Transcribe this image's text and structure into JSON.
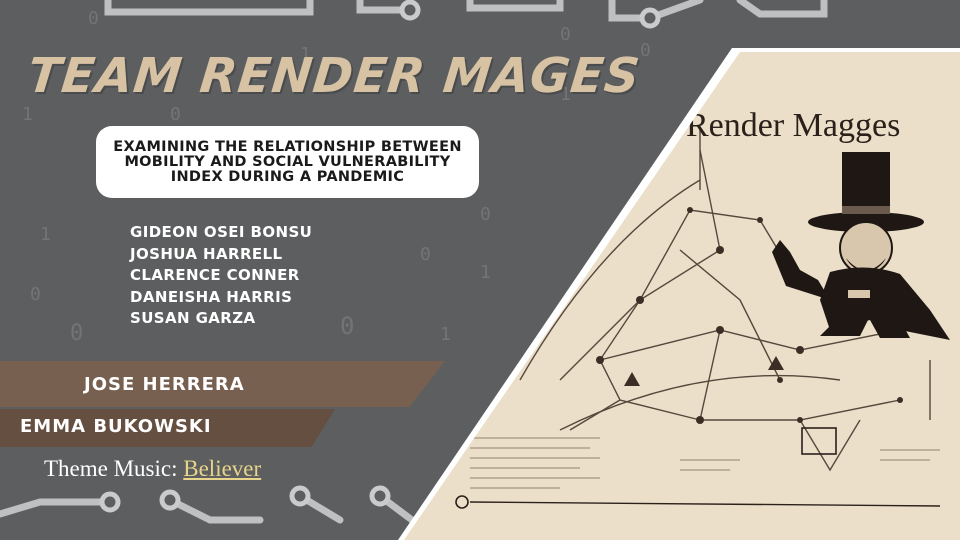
{
  "slide": {
    "title": "TEAM RENDER MAGES",
    "subtitle": "EXAMINING THE RELATIONSHIP BETWEEN MOBILITY AND SOCIAL VULNERABILITY INDEX DURING A PANDEMIC",
    "members": [
      "GIDEON OSEI BONSU",
      "JOSHUA HARRELL",
      "CLARENCE CONNER",
      "DANEISHA HARRIS",
      "SUSAN GARZA"
    ],
    "highlighted_members": [
      "JOSE HERRERA",
      "EMMA BUKOWSKI"
    ],
    "theme_music_label": "Theme Music: ",
    "theme_music_link": "Believer",
    "image_caption": "Render Magges",
    "colors": {
      "background": "#5c5e60",
      "title": "#d7c2a4",
      "band_1": "#77604f",
      "band_2": "#654f40",
      "link": "#e8d48a",
      "parchment": "#efe3cf"
    }
  }
}
